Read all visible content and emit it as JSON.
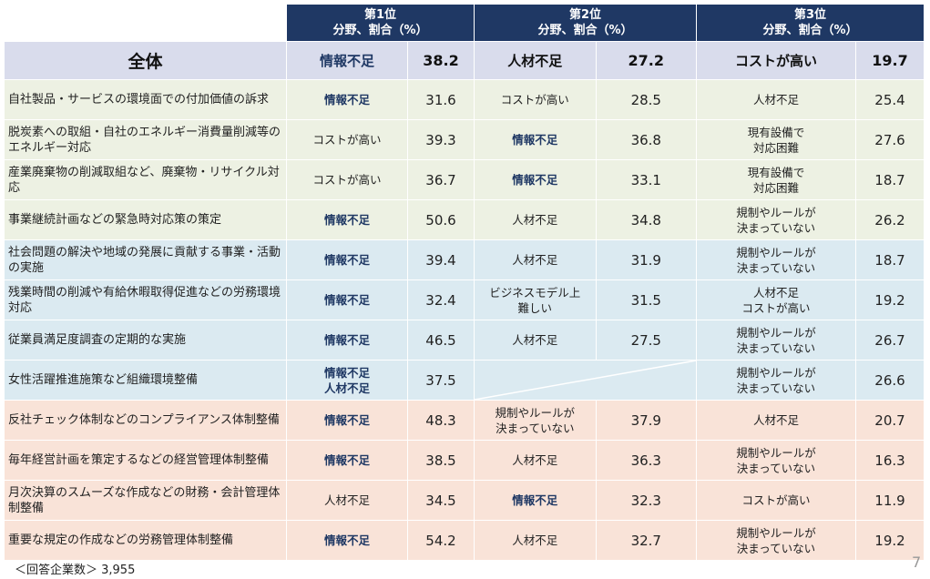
{
  "header": {
    "rank1": {
      "line1": "第1位",
      "line2": "分野、割合（%）"
    },
    "rank2": {
      "line1": "第2位",
      "line2": "分野、割合（%）"
    },
    "rank3": {
      "line1": "第3位",
      "line2": "分野、割合（%）"
    }
  },
  "total": {
    "label": "全体",
    "r1": {
      "cat": "情報不足",
      "val": "38.2"
    },
    "r2": {
      "cat": "人材不足",
      "val": "27.2"
    },
    "r3": {
      "cat": "コストが高い",
      "val": "19.7"
    }
  },
  "rows": [
    {
      "label": "自社製品・サービスの環境面での付加価値の訴求",
      "r1": [
        "情報不足"
      ],
      "r1v": "31.6",
      "r2": [
        "コストが高い"
      ],
      "r2v": "28.5",
      "r3": [
        "人材不足"
      ],
      "r3v": "25.4"
    },
    {
      "label": "脱炭素への取組・自社のエネルギー消費量削減等のエネルギー対応",
      "r1": [
        "コストが高い"
      ],
      "r1v": "39.3",
      "r2": [
        "情報不足"
      ],
      "r2v": "36.8",
      "r3": [
        "現有設備で",
        "対応困難"
      ],
      "r3v": "27.6"
    },
    {
      "label": "産業廃棄物の削減取組など、廃棄物・リサイクル対応",
      "r1": [
        "コストが高い"
      ],
      "r1v": "36.7",
      "r2": [
        "情報不足"
      ],
      "r2v": "33.1",
      "r3": [
        "現有設備で",
        "対応困難"
      ],
      "r3v": "18.7"
    },
    {
      "label": "事業継続計画などの緊急時対応策の策定",
      "r1": [
        "情報不足"
      ],
      "r1v": "50.6",
      "r2": [
        "人材不足"
      ],
      "r2v": "34.8",
      "r3": [
        "規制やルールが",
        "決まっていない"
      ],
      "r3v": "26.2"
    },
    {
      "label": "社会問題の解決や地域の発展に貢献する事業・活動の実施",
      "r1": [
        "情報不足"
      ],
      "r1v": "39.4",
      "r2": [
        "人材不足"
      ],
      "r2v": "31.9",
      "r3": [
        "規制やルールが",
        "決まっていない"
      ],
      "r3v": "18.7"
    },
    {
      "label": "残業時間の削減や有給休暇取得促進などの労務環境対応",
      "r1": [
        "情報不足"
      ],
      "r1v": "32.4",
      "r2": [
        "ビジネスモデル上",
        "難しい"
      ],
      "r2v": "31.5",
      "r3": [
        "人材不足",
        "コストが高い"
      ],
      "r3v": "19.2"
    },
    {
      "label": "従業員満足度調査の定期的な実施",
      "r1": [
        "情報不足"
      ],
      "r1v": "46.5",
      "r2": [
        "人材不足"
      ],
      "r2v": "27.5",
      "r3": [
        "規制やルールが",
        "決まっていない"
      ],
      "r3v": "26.7"
    },
    {
      "label": "女性活躍推進施策など組織環境整備",
      "r1": [
        "情報不足",
        "人材不足"
      ],
      "r1v": "37.5",
      "r2": [],
      "r2v": "",
      "r3": [
        "規制やルールが",
        "決まっていない"
      ],
      "r3v": "26.6"
    },
    {
      "label": "反社チェック体制などのコンプライアンス体制整備",
      "r1": [
        "情報不足"
      ],
      "r1v": "48.3",
      "r2": [
        "規制やルールが",
        "決まっていない"
      ],
      "r2v": "37.9",
      "r3": [
        "人材不足"
      ],
      "r3v": "20.7"
    },
    {
      "label": "毎年経営計画を策定するなどの経営管理体制整備",
      "r1": [
        "情報不足"
      ],
      "r1v": "38.5",
      "r2": [
        "人材不足"
      ],
      "r2v": "36.3",
      "r3": [
        "規制やルールが",
        "決まっていない"
      ],
      "r3v": "16.3"
    },
    {
      "label": "月次決算のスムーズな作成などの財務・会計管理体制整備",
      "r1": [
        "人材不足"
      ],
      "r1v": "34.5",
      "r2": [
        "情報不足"
      ],
      "r2v": "32.3",
      "r3": [
        "コストが高い"
      ],
      "r3v": "11.9"
    },
    {
      "label": "重要な規定の作成などの労務管理体制整備",
      "r1": [
        "情報不足"
      ],
      "r1v": "54.2",
      "r2": [
        "人材不足"
      ],
      "r2v": "32.7",
      "r3": [
        "規制やルールが",
        "決まっていない"
      ],
      "r3v": "19.2"
    }
  ],
  "row_colors": [
    "#edf1e3",
    "#dbeaf1",
    "#f9e3d8"
  ],
  "footer": "＜回答企業数＞ 3,955",
  "page_number": "7"
}
